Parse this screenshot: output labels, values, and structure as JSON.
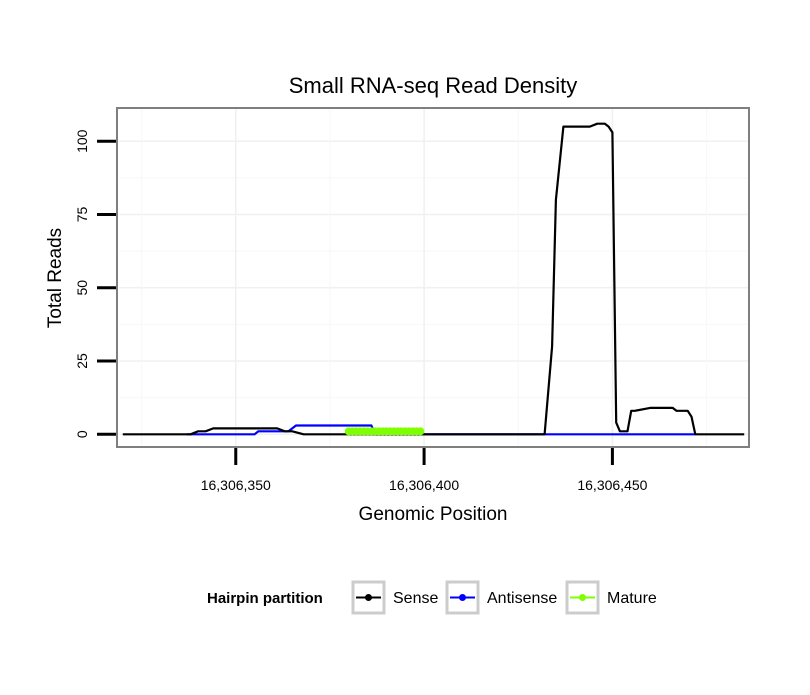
{
  "chart_data": {
    "type": "line",
    "title": "Small RNA-seq Read Density",
    "xlabel": "Genomic Position",
    "ylabel": "Total Reads",
    "xlim": [
      16306319,
      16306486
    ],
    "ylim": [
      -4,
      111
    ],
    "x_ticks": [
      16306350,
      16306400,
      16306450
    ],
    "x_tick_labels": [
      "16,306,350",
      "16,306,400",
      "16,306,450"
    ],
    "y_ticks": [
      0,
      25,
      50,
      75,
      100
    ],
    "y_tick_labels": [
      "0",
      "25",
      "50",
      "75",
      "100"
    ],
    "grid": true,
    "legend": {
      "title": "Hairpin partition",
      "position": "bottom",
      "entries": [
        "Sense",
        "Antisense",
        "Mature"
      ]
    },
    "series": [
      {
        "name": "Sense",
        "color": "#000000",
        "x": [
          16306320,
          16306337,
          16306338,
          16306340,
          16306342,
          16306344,
          16306358,
          16306361,
          16306363,
          16306365,
          16306368,
          16306369,
          16306372,
          16306379,
          16306380,
          16306385,
          16306390,
          16306395,
          16306400,
          16306410,
          16306420,
          16306430,
          16306432,
          16306434,
          16306435,
          16306437,
          16306444,
          16306446,
          16306448,
          16306449,
          16306450,
          16306451,
          16306452,
          16306453,
          16306454,
          16306455,
          16306456,
          16306460,
          16306461,
          16306466,
          16306467,
          16306468,
          16306469,
          16306470,
          16306471,
          16306472,
          16306485
        ],
        "values": [
          0,
          0,
          0,
          1,
          1,
          2,
          2,
          2,
          1,
          1,
          0,
          0,
          0,
          0,
          0,
          0,
          0,
          0,
          0,
          0,
          0,
          0,
          0,
          30,
          80,
          105,
          105,
          106,
          106,
          105,
          103,
          4,
          1,
          1,
          1,
          8,
          8,
          9,
          9,
          9,
          8,
          8,
          8,
          8,
          6,
          0,
          0
        ]
      },
      {
        "name": "Antisense",
        "color": "#0000ff",
        "x": [
          16306337,
          16306354,
          16306355,
          16306356,
          16306364,
          16306366,
          16306386,
          16306387,
          16306400,
          16306450,
          16306472
        ],
        "values": [
          0,
          0,
          0,
          1,
          1,
          3,
          3,
          0,
          0,
          0,
          0
        ]
      },
      {
        "name": "Mature",
        "color": "#7fff00",
        "x": [
          16306380,
          16306381,
          16306382,
          16306383,
          16306384,
          16306385,
          16306386,
          16306387,
          16306388,
          16306389,
          16306390,
          16306391,
          16306392,
          16306393,
          16306394,
          16306395,
          16306396,
          16306397,
          16306398,
          16306399
        ],
        "values": [
          1,
          1,
          1,
          1,
          1,
          1,
          1,
          1,
          1,
          1,
          1,
          1,
          1,
          1,
          1,
          1,
          1,
          1,
          1,
          1
        ]
      }
    ]
  }
}
